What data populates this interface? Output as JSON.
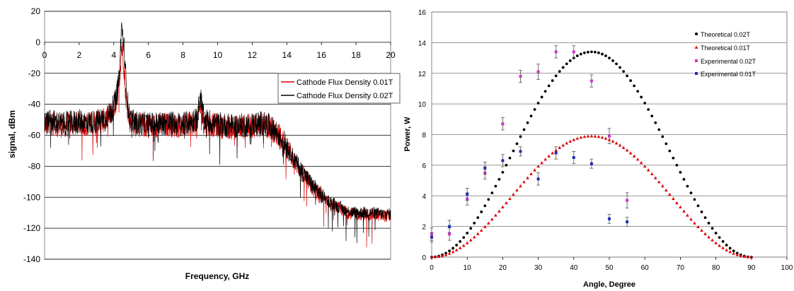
{
  "chart_data": [
    {
      "type": "line",
      "title": "",
      "xlabel": "Frequency, GHz",
      "ylabel": "signal, dBm",
      "xlim": [
        0,
        20
      ],
      "ylim": [
        -140,
        20
      ],
      "xticks": [
        "0",
        "2",
        "4",
        "6",
        "8",
        "10",
        "12",
        "14",
        "16",
        "18",
        "20"
      ],
      "yticks": [
        "20",
        "0",
        "-20",
        "-40",
        "-60",
        "-80",
        "-100",
        "-120",
        "-140"
      ],
      "grid": "horizontal",
      "legend_position": "right",
      "series": [
        {
          "name": "Cathode Flux Density 0.01T",
          "color": "#e00000",
          "x": [
            0,
            0.5,
            1,
            1.5,
            2,
            2.5,
            3,
            3.5,
            3.8,
            4.1,
            4.3,
            4.45,
            4.55,
            4.7,
            4.9,
            5.2,
            6,
            7,
            8,
            8.8,
            9,
            9.2,
            10,
            11,
            12,
            12.5,
            13,
            13.5,
            14,
            14.5,
            15,
            15.5,
            16,
            16.5,
            17,
            17.5,
            18,
            18.5,
            19,
            19.5,
            20
          ],
          "y": [
            -53,
            -52,
            -54,
            -53,
            -52,
            -53,
            -52,
            -50,
            -47,
            -40,
            -28,
            -3,
            -10,
            -35,
            -50,
            -53,
            -54,
            -53,
            -54,
            -52,
            -42,
            -52,
            -54,
            -55,
            -54,
            -53,
            -55,
            -60,
            -68,
            -78,
            -86,
            -94,
            -100,
            -104,
            -107,
            -110,
            -111,
            -111,
            -111,
            -112,
            -112
          ]
        },
        {
          "name": "Cathode Flux Density 0.02T",
          "color": "#000000",
          "x": [
            0,
            0.5,
            1,
            1.5,
            2,
            2.5,
            3,
            3.5,
            3.8,
            4.1,
            4.3,
            4.45,
            4.6,
            4.75,
            4.9,
            5.2,
            6,
            7,
            8,
            8.8,
            9,
            9.2,
            10,
            11,
            12,
            12.5,
            13,
            13.5,
            14,
            14.5,
            15,
            15.5,
            16,
            16.5,
            17,
            17.5,
            18,
            18.5,
            19,
            19.5,
            20
          ],
          "y": [
            -52,
            -51,
            -53,
            -52,
            -51,
            -52,
            -51,
            -49,
            -46,
            -38,
            -25,
            11,
            -5,
            -33,
            -49,
            -52,
            -53,
            -52,
            -53,
            -50,
            -34,
            -50,
            -53,
            -54,
            -53,
            -52,
            -54,
            -59,
            -67,
            -77,
            -85,
            -93,
            -99,
            -103,
            -106,
            -109,
            -110,
            -110,
            -110,
            -111,
            -111
          ]
        }
      ]
    },
    {
      "type": "scatter",
      "title": "",
      "xlabel": "Angle, Degree",
      "ylabel": "Power, W",
      "xlim": [
        0,
        100
      ],
      "ylim": [
        0,
        16
      ],
      "xticks": [
        "0",
        "10",
        "20",
        "30",
        "40",
        "50",
        "60",
        "70",
        "80",
        "90",
        "100"
      ],
      "yticks": [
        "0",
        "2",
        "4",
        "6",
        "8",
        "10",
        "12",
        "14",
        "16"
      ],
      "grid": "horizontal",
      "legend_position": "top-right",
      "series": [
        {
          "name": "Theoretical 0.02T",
          "marker": "dot",
          "color": "#000000",
          "peak": 13.4,
          "x_start": 0,
          "x_end": 90,
          "points": 90
        },
        {
          "name": "Theoretical 0.01T",
          "marker": "triangle",
          "color": "#e00000",
          "peak": 7.9,
          "x_start": 0,
          "x_end": 90,
          "points": 90
        },
        {
          "name": "Experimental 0.02T",
          "marker": "square",
          "color": "#cc33cc",
          "x": [
            0,
            5,
            10,
            15,
            20,
            25,
            30,
            35,
            40,
            45,
            50,
            55
          ],
          "y": [
            1.5,
            1.5,
            3.8,
            5.5,
            8.7,
            11.8,
            12.1,
            13.4,
            13.4,
            11.5,
            7.9,
            3.7
          ],
          "err": [
            0.4,
            0.4,
            0.4,
            0.4,
            0.4,
            0.4,
            0.5,
            0.4,
            0.4,
            0.4,
            0.5,
            0.5
          ]
        },
        {
          "name": "Experimental 0.01T",
          "marker": "square",
          "color": "#1f2fb3",
          "x": [
            0,
            5,
            10,
            15,
            20,
            25,
            30,
            35,
            40,
            45,
            50,
            55
          ],
          "y": [
            1.3,
            2.0,
            4.1,
            5.8,
            6.3,
            6.9,
            5.1,
            6.8,
            6.5,
            6.1,
            2.5,
            2.3
          ],
          "err": [
            0.3,
            0.4,
            0.4,
            0.4,
            0.4,
            0.3,
            0.4,
            0.4,
            0.4,
            0.3,
            0.3,
            0.3
          ]
        }
      ]
    }
  ]
}
